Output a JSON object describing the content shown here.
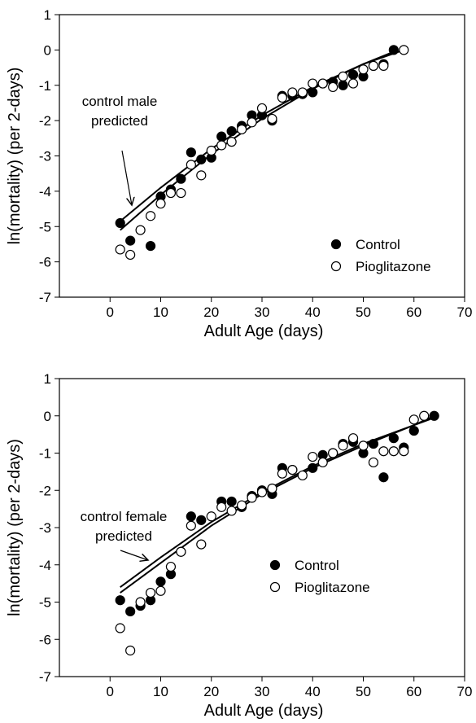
{
  "chart_data": [
    {
      "type": "scatter",
      "xlabel": "Adult Age (days)",
      "ylabel": "ln(mortality) (per 2-days)",
      "xlim": [
        -10,
        70
      ],
      "xticks": [
        0,
        10,
        20,
        30,
        40,
        50,
        60,
        70
      ],
      "ylim": [
        -7,
        1
      ],
      "yticks": [
        -7,
        -6,
        -5,
        -4,
        -3,
        -2,
        -1,
        0,
        1
      ],
      "legend": "lower right",
      "annotation": [
        "control male",
        "predicted"
      ],
      "series": [
        {
          "name": "Control",
          "color": "#000000",
          "marker": "filled",
          "x": [
            2,
            4,
            8,
            10,
            12,
            14,
            16,
            18,
            20,
            22,
            24,
            26,
            28,
            30,
            32,
            34,
            36,
            38,
            40,
            42,
            44,
            46,
            48,
            50,
            52,
            54,
            56
          ],
          "values": [
            -4.9,
            -5.4,
            -5.55,
            -4.15,
            -3.95,
            -3.65,
            -2.9,
            -3.1,
            -3.05,
            -2.45,
            -2.3,
            -2.15,
            -1.85,
            -1.85,
            -2.0,
            -1.3,
            -1.3,
            -1.25,
            -1.2,
            -0.95,
            -0.9,
            -1.0,
            -0.7,
            -0.75,
            -0.45,
            -0.4,
            0.0
          ]
        },
        {
          "name": "Pioglitazone",
          "color": "#000000",
          "marker": "open",
          "x": [
            2,
            4,
            6,
            8,
            10,
            12,
            14,
            16,
            18,
            20,
            22,
            24,
            26,
            28,
            30,
            32,
            34,
            36,
            38,
            40,
            42,
            44,
            46,
            48,
            50,
            52,
            54,
            58
          ],
          "values": [
            -5.65,
            -5.8,
            -5.1,
            -4.7,
            -4.35,
            -4.05,
            -4.05,
            -3.25,
            -3.55,
            -2.85,
            -2.7,
            -2.6,
            -2.25,
            -2.05,
            -1.65,
            -1.95,
            -1.35,
            -1.2,
            -1.2,
            -0.95,
            -0.95,
            -1.05,
            -0.75,
            -0.95,
            -0.55,
            -0.45,
            -0.45,
            0.0
          ]
        }
      ],
      "lines": [
        {
          "color": "#000000",
          "x": [
            2,
            10,
            20,
            30,
            40,
            50,
            56
          ],
          "values": [
            -4.85,
            -3.9,
            -2.8,
            -1.85,
            -1.05,
            -0.4,
            -0.05
          ]
        },
        {
          "color": "#000000",
          "x": [
            2,
            10,
            20,
            30,
            40,
            50,
            58
          ],
          "values": [
            -5.1,
            -4.1,
            -2.95,
            -1.95,
            -1.1,
            -0.4,
            0.0
          ]
        }
      ]
    },
    {
      "type": "scatter",
      "xlabel": "Adult Age (days)",
      "ylabel": "ln(mortality) (per 2-days)",
      "xlim": [
        -10,
        70
      ],
      "xticks": [
        0,
        10,
        20,
        30,
        40,
        50,
        60,
        70
      ],
      "ylim": [
        -7,
        1
      ],
      "yticks": [
        -7,
        -6,
        -5,
        -4,
        -3,
        -2,
        -1,
        0,
        1
      ],
      "legend": "center right",
      "annotation": [
        "control female",
        "predicted"
      ],
      "series": [
        {
          "name": "Control",
          "color": "#000000",
          "marker": "filled",
          "x": [
            2,
            4,
            6,
            8,
            10,
            12,
            14,
            16,
            18,
            22,
            24,
            26,
            28,
            30,
            32,
            34,
            36,
            40,
            42,
            44,
            46,
            48,
            50,
            52,
            54,
            56,
            58,
            60,
            64
          ],
          "values": [
            -4.95,
            -5.25,
            -5.1,
            -4.95,
            -4.45,
            -4.25,
            -3.65,
            -2.7,
            -2.8,
            -2.3,
            -2.3,
            -2.45,
            -2.15,
            -2.0,
            -2.1,
            -1.4,
            -1.45,
            -1.4,
            -1.05,
            -1.0,
            -0.75,
            -0.7,
            -1.0,
            -0.75,
            -1.65,
            -0.6,
            -0.85,
            -0.4,
            0.0
          ]
        },
        {
          "name": "Pioglitazone",
          "color": "#000000",
          "marker": "open",
          "x": [
            2,
            4,
            6,
            8,
            10,
            12,
            14,
            16,
            18,
            20,
            22,
            24,
            26,
            28,
            30,
            32,
            34,
            36,
            38,
            40,
            42,
            44,
            46,
            48,
            50,
            52,
            54,
            56,
            58,
            60,
            62
          ],
          "values": [
            -5.7,
            -6.3,
            -5.0,
            -4.75,
            -4.7,
            -4.05,
            -3.65,
            -2.95,
            -3.45,
            -2.7,
            -2.45,
            -2.55,
            -2.4,
            -2.2,
            -2.05,
            -1.95,
            -1.55,
            -1.45,
            -1.6,
            -1.1,
            -1.25,
            -1.0,
            -0.8,
            -0.6,
            -0.8,
            -1.25,
            -0.95,
            -0.95,
            -0.95,
            -0.1,
            0.0
          ]
        }
      ],
      "lines": [
        {
          "color": "#000000",
          "x": [
            2,
            10,
            20,
            30,
            40,
            50,
            60,
            64
          ],
          "values": [
            -4.6,
            -3.8,
            -2.85,
            -2.05,
            -1.35,
            -0.75,
            -0.25,
            -0.05
          ]
        },
        {
          "color": "#000000",
          "x": [
            2,
            10,
            20,
            30,
            40,
            50,
            60,
            64
          ],
          "values": [
            -4.75,
            -3.95,
            -2.95,
            -2.1,
            -1.4,
            -0.8,
            -0.25,
            0.0
          ]
        }
      ]
    }
  ]
}
